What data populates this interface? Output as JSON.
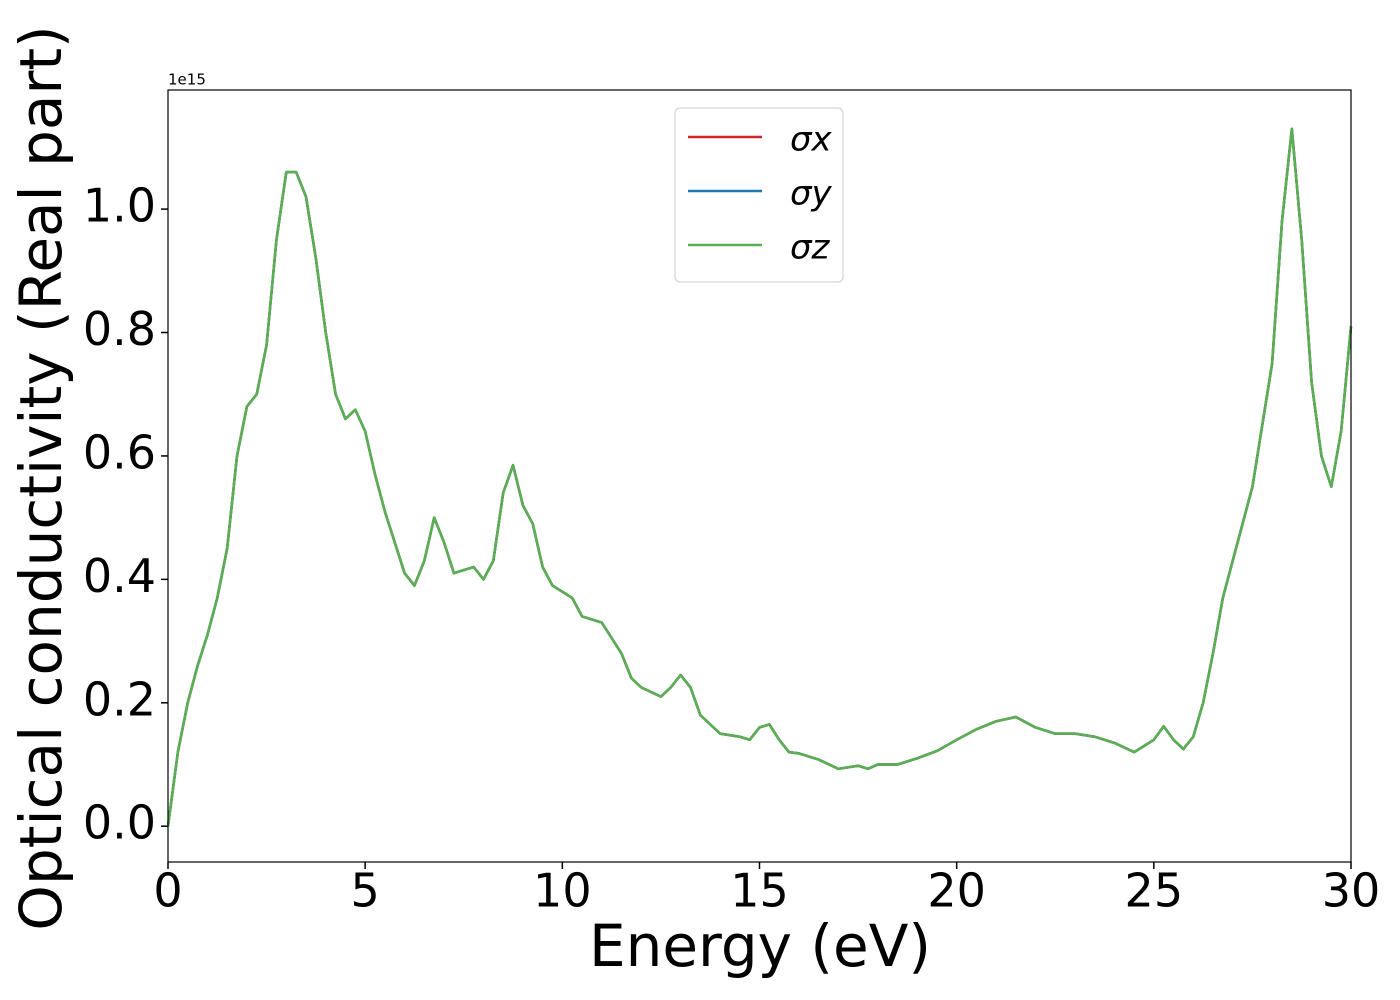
{
  "chart_data": {
    "type": "line",
    "x_label": "Energy (eV)",
    "y_label": "Optical conductivity (Real part)",
    "y_offset_label": "1e15",
    "x": [
      0,
      0.25,
      0.5,
      0.75,
      1.0,
      1.25,
      1.5,
      1.75,
      2.0,
      2.25,
      2.5,
      2.75,
      3.0,
      3.25,
      3.5,
      3.75,
      4.0,
      4.25,
      4.5,
      4.75,
      5.0,
      5.25,
      5.5,
      5.75,
      6.0,
      6.25,
      6.5,
      6.75,
      7.0,
      7.25,
      7.5,
      7.75,
      8.0,
      8.25,
      8.5,
      8.75,
      9.0,
      9.25,
      9.5,
      9.75,
      10.0,
      10.25,
      10.5,
      10.75,
      11.0,
      11.25,
      11.5,
      11.75,
      12.0,
      12.5,
      12.75,
      13.0,
      13.25,
      13.5,
      14.0,
      14.5,
      14.75,
      15.0,
      15.25,
      15.5,
      15.75,
      16.0,
      16.5,
      17.0,
      17.5,
      17.75,
      18.0,
      18.5,
      19.0,
      19.5,
      20.0,
      20.5,
      21.0,
      21.5,
      22.0,
      22.5,
      23.0,
      23.5,
      24.0,
      24.5,
      25.0,
      25.25,
      25.5,
      25.75,
      26.0,
      26.25,
      26.5,
      26.75,
      27.0,
      27.5,
      28.0,
      28.25,
      28.5,
      28.75,
      29.0,
      29.25,
      29.5,
      29.75,
      30.0
    ],
    "series": [
      {
        "name": "σx",
        "color": "#d62728",
        "values": [
          0.0,
          0.12,
          0.2,
          0.26,
          0.31,
          0.37,
          0.45,
          0.6,
          0.68,
          0.7,
          0.78,
          0.95,
          1.06,
          1.06,
          1.02,
          0.92,
          0.8,
          0.7,
          0.66,
          0.675,
          0.64,
          0.57,
          0.51,
          0.46,
          0.41,
          0.39,
          0.43,
          0.5,
          0.46,
          0.41,
          0.415,
          0.42,
          0.4,
          0.43,
          0.54,
          0.585,
          0.52,
          0.49,
          0.42,
          0.39,
          0.38,
          0.37,
          0.34,
          0.335,
          0.33,
          0.305,
          0.28,
          0.24,
          0.225,
          0.21,
          0.225,
          0.245,
          0.225,
          0.18,
          0.15,
          0.145,
          0.14,
          0.16,
          0.165,
          0.14,
          0.12,
          0.118,
          0.108,
          0.093,
          0.098,
          0.093,
          0.1,
          0.1,
          0.11,
          0.122,
          0.14,
          0.157,
          0.17,
          0.177,
          0.16,
          0.15,
          0.15,
          0.145,
          0.135,
          0.12,
          0.14,
          0.162,
          0.14,
          0.125,
          0.145,
          0.2,
          0.28,
          0.37,
          0.43,
          0.55,
          0.75,
          0.98,
          1.13,
          0.95,
          0.72,
          0.6,
          0.55,
          0.64,
          0.81
        ]
      },
      {
        "name": "σy",
        "color": "#1f77b4",
        "values": [
          0.0,
          0.12,
          0.2,
          0.26,
          0.31,
          0.37,
          0.45,
          0.6,
          0.68,
          0.7,
          0.78,
          0.95,
          1.06,
          1.06,
          1.02,
          0.92,
          0.8,
          0.7,
          0.66,
          0.675,
          0.64,
          0.57,
          0.51,
          0.46,
          0.41,
          0.39,
          0.43,
          0.5,
          0.46,
          0.41,
          0.415,
          0.42,
          0.4,
          0.43,
          0.54,
          0.585,
          0.52,
          0.49,
          0.42,
          0.39,
          0.38,
          0.37,
          0.34,
          0.335,
          0.33,
          0.305,
          0.28,
          0.24,
          0.225,
          0.21,
          0.225,
          0.245,
          0.225,
          0.18,
          0.15,
          0.145,
          0.14,
          0.16,
          0.165,
          0.14,
          0.12,
          0.118,
          0.108,
          0.093,
          0.098,
          0.093,
          0.1,
          0.1,
          0.11,
          0.122,
          0.14,
          0.157,
          0.17,
          0.177,
          0.16,
          0.15,
          0.15,
          0.145,
          0.135,
          0.12,
          0.14,
          0.162,
          0.14,
          0.125,
          0.145,
          0.2,
          0.28,
          0.37,
          0.43,
          0.55,
          0.75,
          0.98,
          1.13,
          0.95,
          0.72,
          0.6,
          0.55,
          0.64,
          0.81
        ]
      },
      {
        "name": "σz",
        "color": "#5aaf50",
        "values": [
          0.0,
          0.12,
          0.2,
          0.26,
          0.31,
          0.37,
          0.45,
          0.6,
          0.68,
          0.7,
          0.78,
          0.95,
          1.06,
          1.06,
          1.02,
          0.92,
          0.8,
          0.7,
          0.66,
          0.675,
          0.64,
          0.57,
          0.51,
          0.46,
          0.41,
          0.39,
          0.43,
          0.5,
          0.46,
          0.41,
          0.415,
          0.42,
          0.4,
          0.43,
          0.54,
          0.585,
          0.52,
          0.49,
          0.42,
          0.39,
          0.38,
          0.37,
          0.34,
          0.335,
          0.33,
          0.305,
          0.28,
          0.24,
          0.225,
          0.21,
          0.225,
          0.245,
          0.225,
          0.18,
          0.15,
          0.145,
          0.14,
          0.16,
          0.165,
          0.14,
          0.12,
          0.118,
          0.108,
          0.093,
          0.098,
          0.093,
          0.1,
          0.1,
          0.11,
          0.122,
          0.14,
          0.157,
          0.17,
          0.177,
          0.16,
          0.15,
          0.15,
          0.145,
          0.135,
          0.12,
          0.14,
          0.162,
          0.14,
          0.125,
          0.145,
          0.2,
          0.28,
          0.37,
          0.43,
          0.55,
          0.75,
          0.98,
          1.13,
          0.95,
          0.72,
          0.6,
          0.55,
          0.64,
          0.81
        ]
      }
    ],
    "xlim": [
      0,
      30
    ],
    "xticks": [
      0,
      5,
      10,
      15,
      20,
      25,
      30
    ],
    "ylim": [
      -0.058,
      1.193
    ],
    "yticks": [
      {
        "value": 0,
        "label": "0.0"
      },
      {
        "value": 0.2,
        "label": "0.2"
      },
      {
        "value": 0.4,
        "label": "0.4"
      },
      {
        "value": 0.6,
        "label": "0.6"
      },
      {
        "value": 0.8,
        "label": "0.8"
      },
      {
        "value": 1.0,
        "label": "1.0"
      }
    ],
    "grid": false,
    "legend": "upper center"
  }
}
